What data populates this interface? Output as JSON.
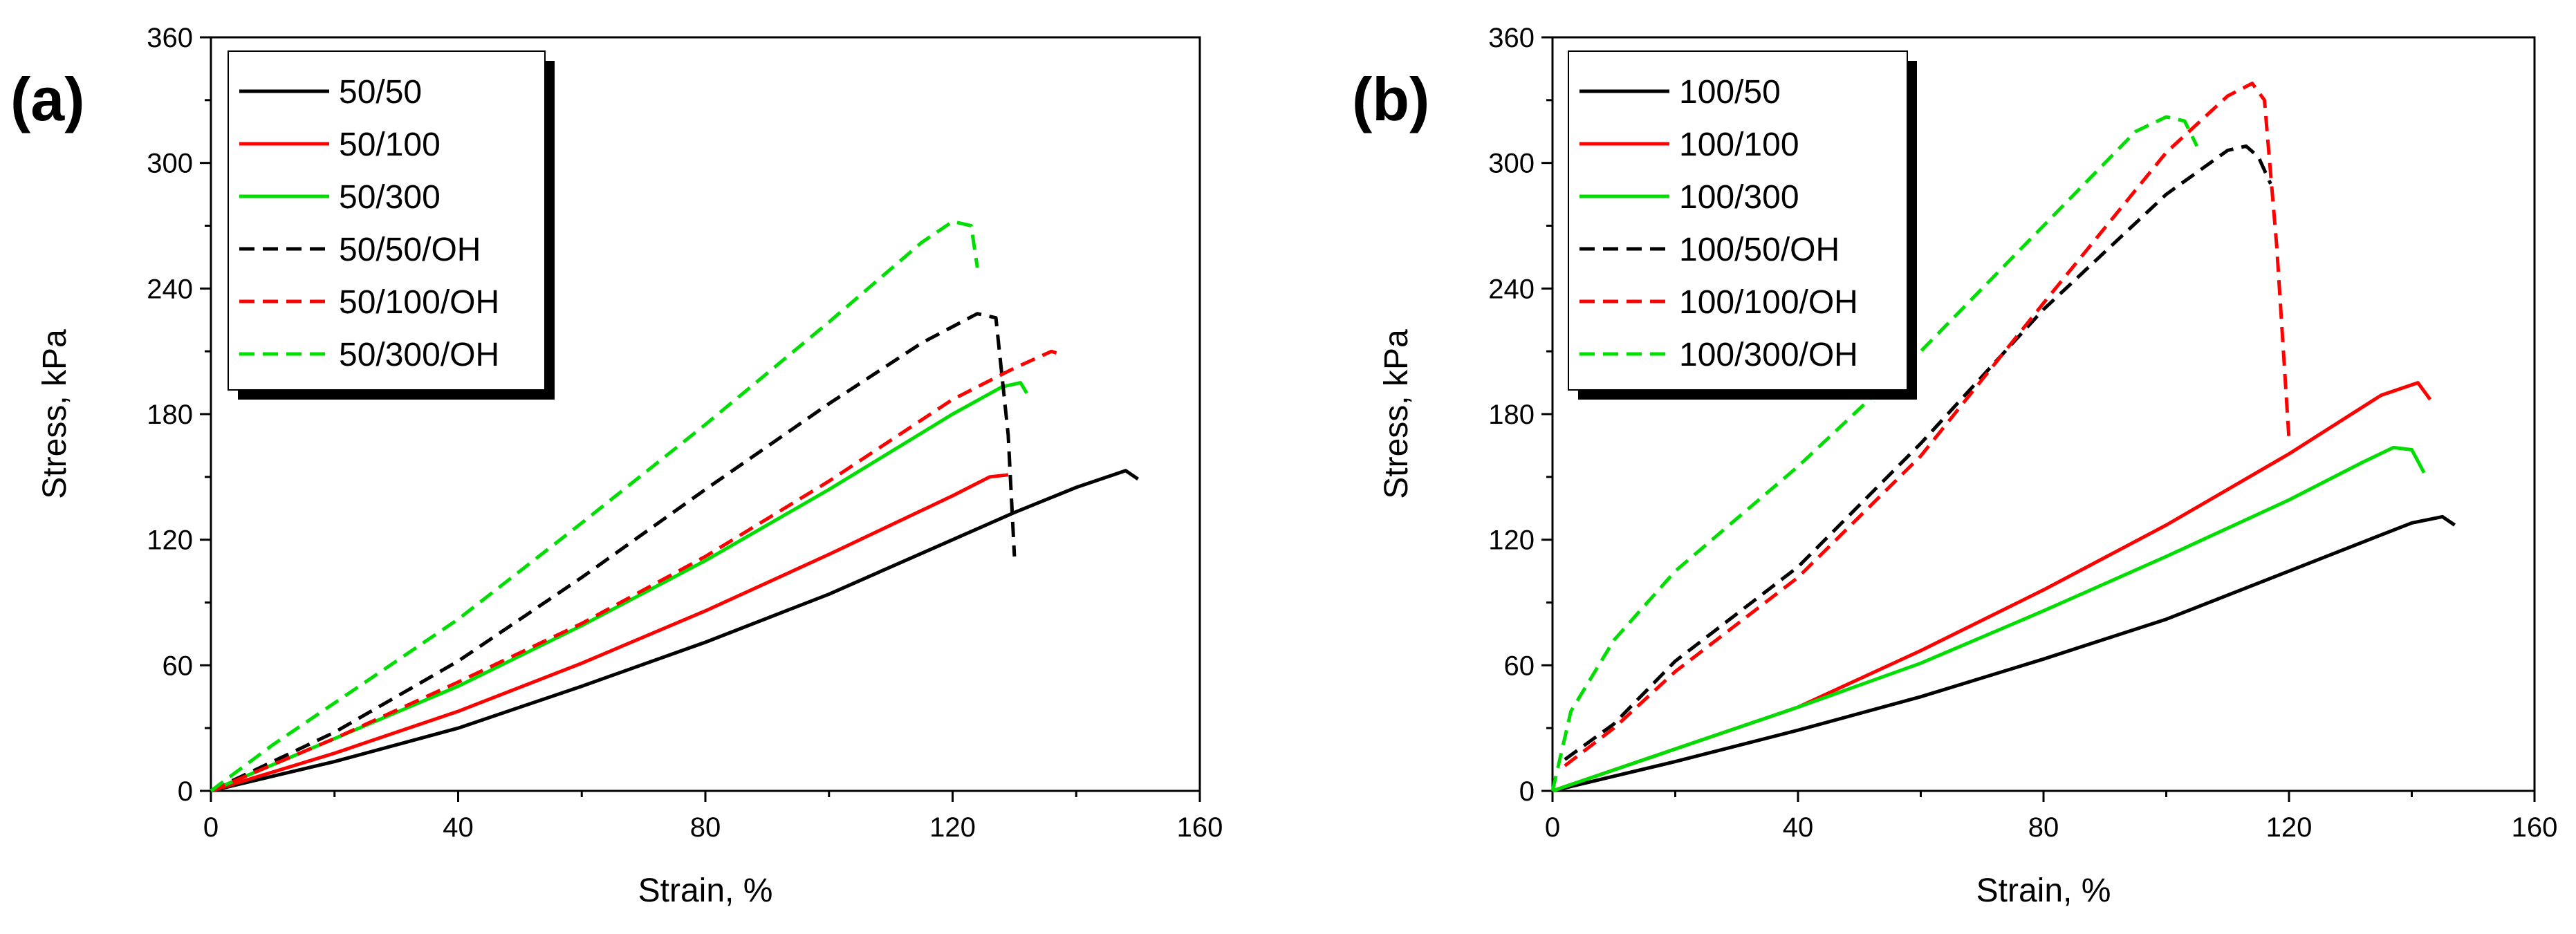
{
  "chart_data": [
    {
      "type": "line",
      "panel_label": "(a)",
      "xlabel": "Strain, %",
      "ylabel": "Stress, kPa",
      "xlim": [
        0,
        160
      ],
      "ylim": [
        0,
        360
      ],
      "xticks": [
        0,
        40,
        80,
        120,
        160
      ],
      "yticks": [
        0,
        60,
        120,
        180,
        240,
        300,
        360
      ],
      "legend_position": "top-left",
      "series": [
        {
          "name": "50/50",
          "color": "#000000",
          "style": "solid",
          "x": [
            0,
            20,
            40,
            60,
            80,
            100,
            120,
            130,
            140,
            148,
            150
          ],
          "y": [
            0,
            14,
            30,
            50,
            71,
            94,
            120,
            133,
            145,
            153,
            149
          ]
        },
        {
          "name": "50/100",
          "color": "#ff0000",
          "style": "solid",
          "x": [
            0,
            20,
            40,
            60,
            80,
            100,
            120,
            126,
            129
          ],
          "y": [
            0,
            18,
            38,
            61,
            86,
            113,
            141,
            150,
            151
          ]
        },
        {
          "name": "50/300",
          "color": "#00dd00",
          "style": "solid",
          "x": [
            0,
            20,
            40,
            60,
            80,
            100,
            120,
            128,
            131,
            132
          ],
          "y": [
            0,
            25,
            50,
            79,
            110,
            144,
            180,
            193,
            195,
            190
          ]
        },
        {
          "name": "50/50/OH",
          "color": "#000000",
          "style": "dashed",
          "x": [
            0,
            20,
            40,
            60,
            80,
            100,
            115,
            124,
            127,
            129,
            130
          ],
          "y": [
            0,
            28,
            62,
            102,
            144,
            185,
            214,
            228,
            226,
            170,
            112
          ]
        },
        {
          "name": "50/100/OH",
          "color": "#ff0000",
          "style": "dashed",
          "x": [
            0,
            20,
            40,
            60,
            80,
            100,
            120,
            130,
            136,
            138
          ],
          "y": [
            0,
            25,
            52,
            80,
            112,
            148,
            187,
            202,
            210,
            208
          ]
        },
        {
          "name": "50/300/OH",
          "color": "#00dd00",
          "style": "dashed",
          "x": [
            0,
            10,
            20,
            40,
            60,
            80,
            100,
            115,
            120,
            123,
            124
          ],
          "y": [
            0,
            22,
            42,
            82,
            128,
            175,
            224,
            262,
            272,
            270,
            250
          ]
        }
      ]
    },
    {
      "type": "line",
      "panel_label": "(b)",
      "xlabel": "Strain, %",
      "ylabel": "Stress, kPa",
      "xlim": [
        0,
        160
      ],
      "ylim": [
        0,
        360
      ],
      "xticks": [
        0,
        40,
        80,
        120,
        160
      ],
      "yticks": [
        0,
        60,
        120,
        180,
        240,
        300,
        360
      ],
      "legend_position": "top-left",
      "series": [
        {
          "name": "100/50",
          "color": "#000000",
          "style": "solid",
          "x": [
            0,
            20,
            40,
            60,
            80,
            100,
            120,
            140,
            145,
            147
          ],
          "y": [
            0,
            14,
            29,
            45,
            63,
            82,
            105,
            128,
            131,
            127
          ]
        },
        {
          "name": "100/100",
          "color": "#ff0000",
          "style": "solid",
          "x": [
            0,
            20,
            40,
            60,
            80,
            100,
            120,
            135,
            141,
            143
          ],
          "y": [
            0,
            20,
            40,
            67,
            96,
            127,
            161,
            189,
            195,
            187
          ]
        },
        {
          "name": "100/300",
          "color": "#00dd00",
          "style": "solid",
          "x": [
            0,
            20,
            40,
            60,
            80,
            100,
            120,
            132,
            137,
            140,
            142
          ],
          "y": [
            0,
            20,
            40,
            61,
            86,
            112,
            139,
            157,
            164,
            163,
            152
          ]
        },
        {
          "name": "100/50/OH",
          "color": "#000000",
          "style": "dashed",
          "x": [
            2,
            10,
            20,
            40,
            60,
            80,
            100,
            110,
            113,
            115,
            117
          ],
          "y": [
            15,
            32,
            62,
            107,
            166,
            230,
            285,
            306,
            308,
            303,
            290
          ]
        },
        {
          "name": "100/100/OH",
          "color": "#ff0000",
          "style": "dashed",
          "x": [
            2,
            10,
            20,
            40,
            60,
            80,
            100,
            110,
            114,
            116,
            118,
            120
          ],
          "y": [
            12,
            30,
            57,
            102,
            160,
            233,
            305,
            332,
            338,
            330,
            260,
            168
          ]
        },
        {
          "name": "100/300/OH",
          "color": "#00dd00",
          "style": "dashed",
          "x": [
            0,
            3,
            10,
            20,
            40,
            60,
            80,
            95,
            100,
            103,
            105
          ],
          "y": [
            0,
            38,
            72,
            105,
            155,
            210,
            270,
            315,
            322,
            320,
            308
          ]
        }
      ]
    }
  ]
}
